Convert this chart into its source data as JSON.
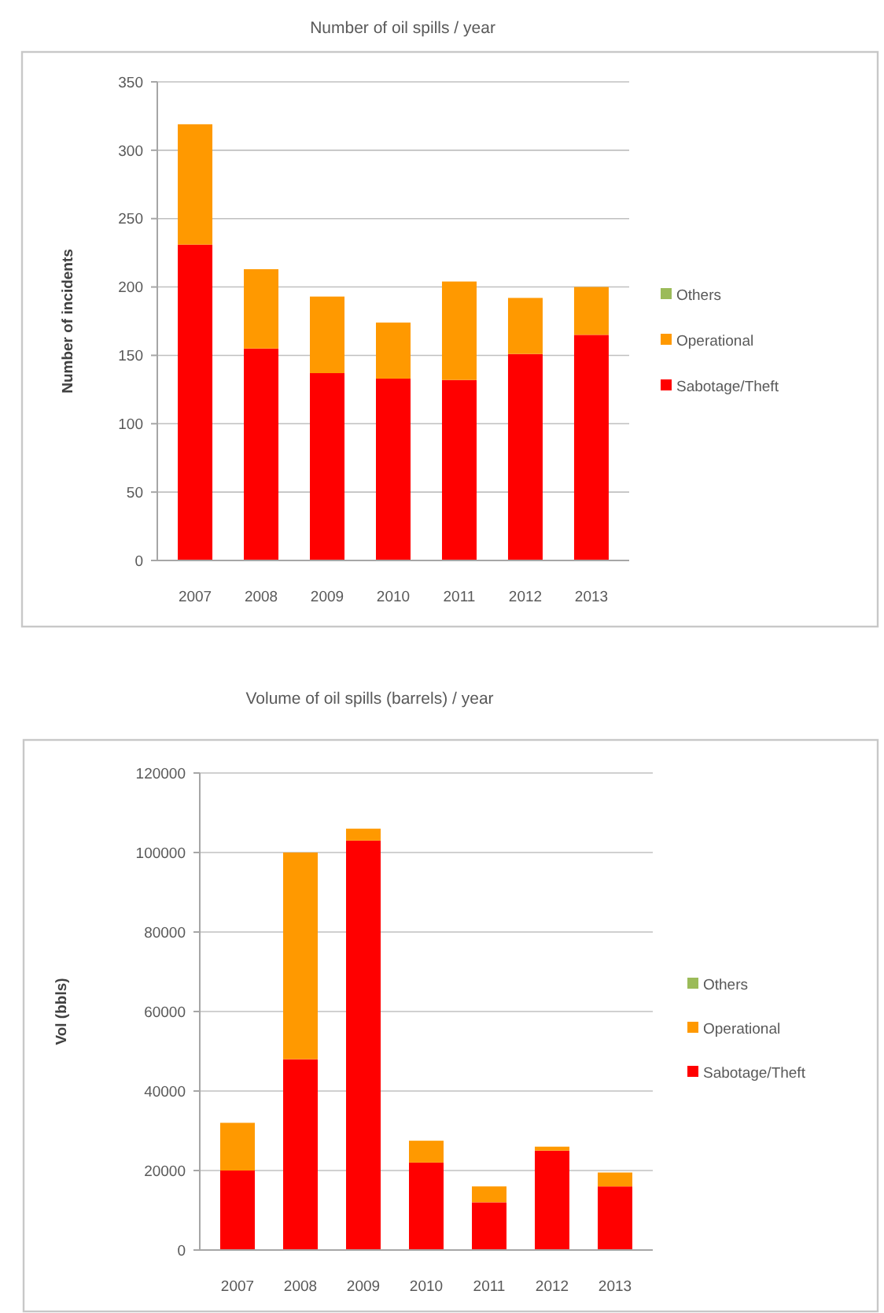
{
  "chart_data": [
    {
      "type": "bar",
      "title": "Number of oil spills / year",
      "ylabel": "Number of incidents",
      "categories": [
        "2007",
        "2008",
        "2009",
        "2010",
        "2011",
        "2012",
        "2013"
      ],
      "stacked": true,
      "series": [
        {
          "name": "Sabotage/Theft",
          "color": "#ff0000",
          "values": [
            231,
            155,
            137,
            133,
            132,
            151,
            165
          ]
        },
        {
          "name": "Operational",
          "color": "#ff9900",
          "values": [
            88,
            58,
            56,
            41,
            72,
            41,
            35
          ]
        },
        {
          "name": "Others",
          "color": "#9bbb59",
          "values": [
            0,
            0,
            0,
            0,
            0,
            0,
            0
          ]
        }
      ],
      "ylim": [
        0,
        350
      ],
      "yticks": [
        0,
        50,
        100,
        150,
        200,
        250,
        300,
        350
      ],
      "grid": "y",
      "legend": "right"
    },
    {
      "type": "bar",
      "title": "Volume of oil spills (barrels) / year",
      "ylabel": "Vol (bbls)",
      "categories": [
        "2007",
        "2008",
        "2009",
        "2010",
        "2011",
        "2012",
        "2013"
      ],
      "stacked": true,
      "series": [
        {
          "name": "Sabotage/Theft",
          "color": "#ff0000",
          "values": [
            20000,
            48000,
            103000,
            22000,
            12000,
            25000,
            16000
          ]
        },
        {
          "name": "Operational",
          "color": "#ff9900",
          "values": [
            12000,
            52000,
            3000,
            5500,
            4000,
            1000,
            3500
          ]
        },
        {
          "name": "Others",
          "color": "#9bbb59",
          "values": [
            0,
            0,
            0,
            0,
            0,
            0,
            0
          ]
        }
      ],
      "ylim": [
        0,
        120000
      ],
      "yticks": [
        0,
        20000,
        40000,
        60000,
        80000,
        100000,
        120000
      ],
      "grid": "y",
      "legend": "right"
    }
  ]
}
